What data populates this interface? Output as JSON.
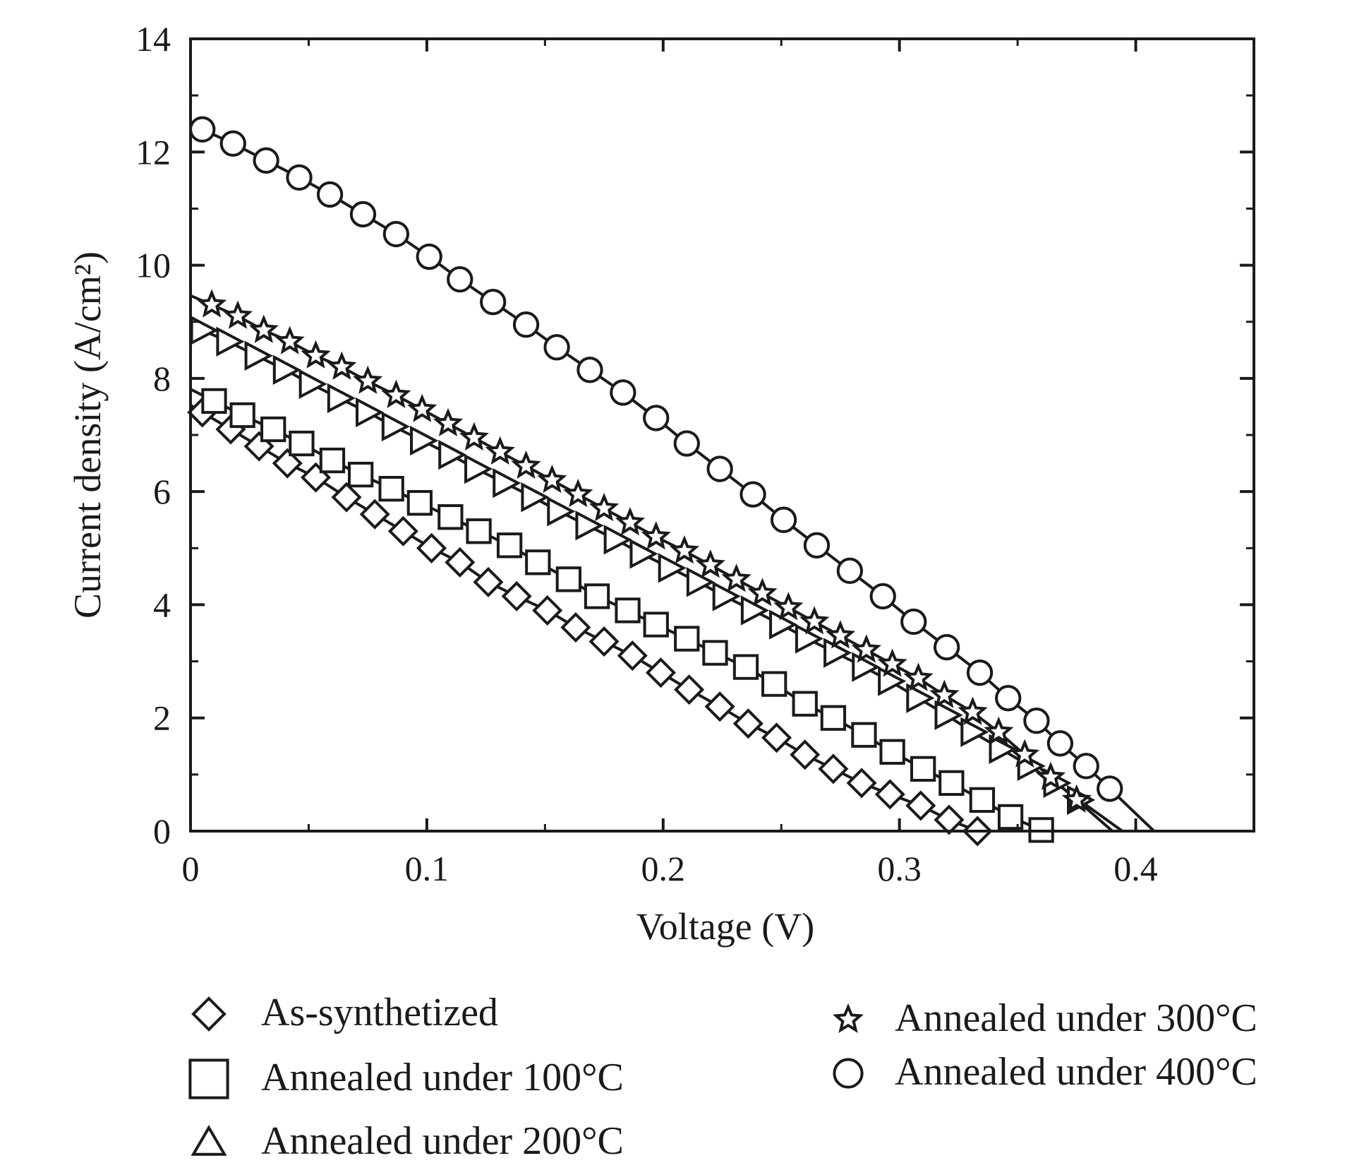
{
  "chart_data": {
    "type": "line",
    "title": "",
    "xlabel": "Voltage (V)",
    "ylabel": "Current density (A/cm²)",
    "xlim": [
      0,
      0.45
    ],
    "ylim": [
      0,
      14
    ],
    "xticks": [
      0,
      0.1,
      0.2,
      0.3,
      0.4
    ],
    "xtick_labels": [
      "0",
      "0.1",
      "0.2",
      "0.3",
      "0.4"
    ],
    "yticks": [
      0,
      2,
      4,
      6,
      8,
      10,
      12,
      14
    ],
    "ytick_labels": [
      "0",
      "2",
      "4",
      "6",
      "8",
      "10",
      "12",
      "14"
    ],
    "grid": false,
    "legend_position": "bottom",
    "series": [
      {
        "name": "As-synthetized",
        "marker": "diamond",
        "x": [
          0.005,
          0.017,
          0.029,
          0.041,
          0.053,
          0.066,
          0.078,
          0.09,
          0.102,
          0.114,
          0.126,
          0.138,
          0.151,
          0.163,
          0.175,
          0.187,
          0.199,
          0.211,
          0.224,
          0.236,
          0.248,
          0.26,
          0.272,
          0.284,
          0.296,
          0.309,
          0.321,
          0.333
        ],
        "y": [
          7.4,
          7.1,
          6.8,
          6.5,
          6.25,
          5.9,
          5.6,
          5.3,
          5.0,
          4.75,
          4.4,
          4.15,
          3.9,
          3.6,
          3.35,
          3.1,
          2.8,
          2.5,
          2.2,
          1.9,
          1.65,
          1.35,
          1.1,
          0.85,
          0.65,
          0.45,
          0.2,
          0.0
        ]
      },
      {
        "name": "Annealed under 100°C",
        "marker": "square",
        "x": [
          0.01,
          0.022,
          0.035,
          0.047,
          0.06,
          0.072,
          0.085,
          0.097,
          0.11,
          0.122,
          0.135,
          0.147,
          0.16,
          0.172,
          0.185,
          0.197,
          0.21,
          0.222,
          0.235,
          0.247,
          0.26,
          0.272,
          0.285,
          0.297,
          0.31,
          0.322,
          0.335,
          0.347,
          0.36
        ],
        "y": [
          7.6,
          7.35,
          7.1,
          6.85,
          6.55,
          6.3,
          6.05,
          5.8,
          5.55,
          5.3,
          5.05,
          4.75,
          4.45,
          4.15,
          3.9,
          3.65,
          3.4,
          3.15,
          2.9,
          2.6,
          2.25,
          2.0,
          1.7,
          1.4,
          1.1,
          0.85,
          0.55,
          0.25,
          0.02
        ]
      },
      {
        "name": "Annealed under 200°C",
        "marker": "triangle",
        "x": [
          0.005,
          0.016,
          0.028,
          0.04,
          0.051,
          0.063,
          0.075,
          0.086,
          0.098,
          0.11,
          0.121,
          0.133,
          0.145,
          0.156,
          0.168,
          0.18,
          0.191,
          0.203,
          0.215,
          0.226,
          0.238,
          0.25,
          0.261,
          0.273,
          0.285,
          0.296,
          0.308,
          0.32,
          0.331,
          0.343,
          0.355,
          0.366,
          0.376
        ],
        "y": [
          8.85,
          8.65,
          8.4,
          8.15,
          7.9,
          7.65,
          7.4,
          7.15,
          6.9,
          6.65,
          6.4,
          6.15,
          5.9,
          5.65,
          5.4,
          5.15,
          4.9,
          4.65,
          4.4,
          4.15,
          3.9,
          3.65,
          3.4,
          3.15,
          2.9,
          2.65,
          2.35,
          2.05,
          1.75,
          1.45,
          1.15,
          0.85,
          0.55
        ]
      },
      {
        "name": "Annealed under 300°C",
        "marker": "star",
        "x": [
          0.009,
          0.02,
          0.031,
          0.042,
          0.053,
          0.064,
          0.075,
          0.087,
          0.098,
          0.109,
          0.12,
          0.131,
          0.142,
          0.153,
          0.164,
          0.175,
          0.186,
          0.197,
          0.209,
          0.22,
          0.231,
          0.242,
          0.253,
          0.264,
          0.275,
          0.286,
          0.297,
          0.308,
          0.319,
          0.331,
          0.342,
          0.353,
          0.364,
          0.375
        ],
        "y": [
          9.3,
          9.1,
          8.85,
          8.65,
          8.4,
          8.2,
          7.95,
          7.7,
          7.45,
          7.2,
          6.95,
          6.7,
          6.45,
          6.2,
          5.95,
          5.7,
          5.45,
          5.2,
          4.95,
          4.7,
          4.45,
          4.2,
          3.95,
          3.7,
          3.45,
          3.2,
          2.95,
          2.7,
          2.4,
          2.1,
          1.75,
          1.35,
          0.95,
          0.55
        ]
      },
      {
        "name": "Annealed under 400°C",
        "marker": "circle",
        "x": [
          0.005,
          0.018,
          0.032,
          0.046,
          0.059,
          0.073,
          0.087,
          0.101,
          0.114,
          0.128,
          0.142,
          0.155,
          0.169,
          0.183,
          0.197,
          0.21,
          0.224,
          0.238,
          0.251,
          0.265,
          0.279,
          0.293,
          0.306,
          0.32,
          0.334,
          0.346,
          0.358,
          0.368,
          0.379,
          0.389
        ],
        "y": [
          12.4,
          12.15,
          11.85,
          11.55,
          11.25,
          10.9,
          10.55,
          10.15,
          9.75,
          9.35,
          8.95,
          8.55,
          8.15,
          7.75,
          7.3,
          6.85,
          6.4,
          5.95,
          5.5,
          5.05,
          4.6,
          4.15,
          3.7,
          3.25,
          2.8,
          2.35,
          1.95,
          1.55,
          1.15,
          0.75
        ]
      }
    ]
  },
  "legend": [
    {
      "label": "As-synthetized",
      "marker": "diamond",
      "column": 0,
      "row": 0
    },
    {
      "label": "Annealed under 100°C",
      "marker": "square",
      "column": 0,
      "row": 1
    },
    {
      "label": "Annealed under 200°C",
      "marker": "triangle",
      "column": 0,
      "row": 2
    },
    {
      "label": "Annealed under 300°C",
      "marker": "star",
      "column": 1,
      "row": 0
    },
    {
      "label": "Annealed under 400°C",
      "marker": "circle",
      "column": 1,
      "row": 1
    }
  ]
}
